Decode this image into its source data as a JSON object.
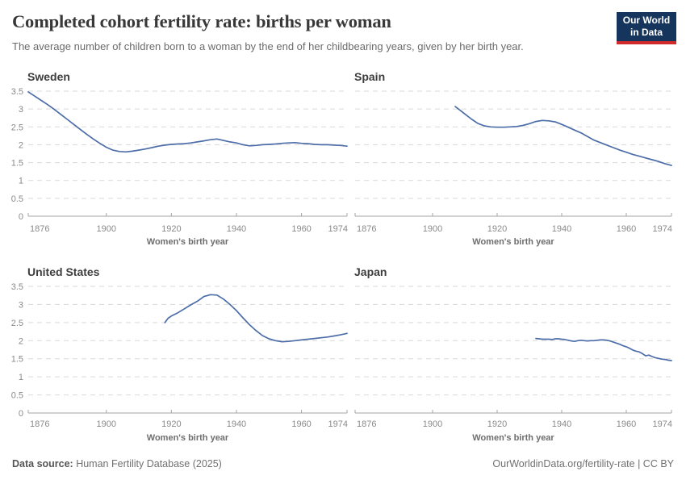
{
  "header": {
    "title": "Completed cohort fertility rate: births per woman",
    "subtitle": "The average number of children born to a woman by the end of her childbearing years, given by her birth year.",
    "logo": {
      "line1": "Our World",
      "line2": "in Data"
    }
  },
  "footer": {
    "source_label": "Data source:",
    "source_value": " Human Fertility Database (2025)",
    "credit": "OurWorldinData.org/fertility-rate | CC BY"
  },
  "colors": {
    "line": "#4c6da8",
    "grid": "#d9d9d9",
    "axis": "#a5a5a5",
    "tick_label": "#8a8a8a",
    "axis_title": "#6e6e6e",
    "facet_title": "#3d3d3d",
    "title": "#383838",
    "subtitle": "#6b6b6b",
    "logo_bg": "#16355c",
    "logo_red": "#d02a2a"
  },
  "chart_data": [
    {
      "type": "line",
      "title": "Sweden",
      "xlabel": "Women's birth year",
      "xlim": [
        1876,
        1974
      ],
      "ylim": [
        0,
        3.5
      ],
      "xticks": [
        1876,
        1900,
        1920,
        1940,
        1960,
        1974
      ],
      "yticks": [
        0,
        0.5,
        1,
        1.5,
        2,
        2.5,
        3,
        3.5
      ],
      "grid": "dashed-horizontal",
      "x": [
        1876,
        1878,
        1880,
        1882,
        1884,
        1886,
        1888,
        1890,
        1892,
        1894,
        1896,
        1898,
        1900,
        1902,
        1904,
        1906,
        1908,
        1910,
        1912,
        1914,
        1916,
        1918,
        1920,
        1922,
        1924,
        1926,
        1928,
        1930,
        1932,
        1934,
        1936,
        1938,
        1940,
        1942,
        1944,
        1946,
        1948,
        1950,
        1952,
        1954,
        1956,
        1958,
        1960,
        1962,
        1964,
        1966,
        1968,
        1970,
        1972,
        1974
      ],
      "values": [
        3.48,
        3.36,
        3.24,
        3.12,
        2.99,
        2.85,
        2.71,
        2.57,
        2.43,
        2.29,
        2.16,
        2.04,
        1.93,
        1.85,
        1.81,
        1.8,
        1.82,
        1.85,
        1.88,
        1.92,
        1.96,
        1.99,
        2.01,
        2.02,
        2.03,
        2.05,
        2.08,
        2.11,
        2.14,
        2.16,
        2.12,
        2.08,
        2.05,
        2.0,
        1.97,
        1.98,
        2.0,
        2.01,
        2.02,
        2.04,
        2.05,
        2.06,
        2.04,
        2.03,
        2.01,
        2.0,
        2.0,
        1.99,
        1.98,
        1.96
      ]
    },
    {
      "type": "line",
      "title": "Spain",
      "xlabel": "Women's birth year",
      "xlim": [
        1876,
        1974
      ],
      "ylim": [
        0,
        3.5
      ],
      "xticks": [
        1876,
        1900,
        1920,
        1940,
        1960,
        1974
      ],
      "yticks": [
        0,
        0.5,
        1,
        1.5,
        2,
        2.5,
        3,
        3.5
      ],
      "grid": "dashed-horizontal",
      "x": [
        1907,
        1908,
        1910,
        1912,
        1914,
        1916,
        1918,
        1920,
        1922,
        1924,
        1926,
        1928,
        1930,
        1932,
        1934,
        1936,
        1938,
        1940,
        1942,
        1944,
        1946,
        1948,
        1950,
        1952,
        1954,
        1956,
        1958,
        1960,
        1962,
        1964,
        1966,
        1968,
        1970,
        1972,
        1974
      ],
      "values": [
        3.07,
        3.0,
        2.86,
        2.72,
        2.6,
        2.53,
        2.5,
        2.49,
        2.49,
        2.5,
        2.51,
        2.54,
        2.59,
        2.65,
        2.68,
        2.67,
        2.64,
        2.57,
        2.49,
        2.41,
        2.33,
        2.23,
        2.13,
        2.06,
        1.99,
        1.92,
        1.85,
        1.79,
        1.73,
        1.68,
        1.63,
        1.58,
        1.53,
        1.47,
        1.42
      ]
    },
    {
      "type": "line",
      "title": "United States",
      "xlabel": "Women's birth year",
      "xlim": [
        1876,
        1974
      ],
      "ylim": [
        0,
        3.5
      ],
      "xticks": [
        1876,
        1900,
        1920,
        1940,
        1960,
        1974
      ],
      "yticks": [
        0,
        0.5,
        1,
        1.5,
        2,
        2.5,
        3,
        3.5
      ],
      "grid": "dashed-horizontal",
      "x": [
        1918,
        1919,
        1920,
        1922,
        1924,
        1926,
        1928,
        1930,
        1932,
        1934,
        1936,
        1938,
        1940,
        1942,
        1944,
        1946,
        1948,
        1950,
        1952,
        1954,
        1956,
        1958,
        1960,
        1962,
        1964,
        1966,
        1968,
        1970,
        1972,
        1974
      ],
      "values": [
        2.5,
        2.62,
        2.68,
        2.77,
        2.88,
        2.99,
        3.09,
        3.22,
        3.27,
        3.26,
        3.15,
        3.0,
        2.83,
        2.63,
        2.44,
        2.28,
        2.14,
        2.05,
        2.0,
        1.97,
        1.98,
        2.0,
        2.02,
        2.04,
        2.06,
        2.08,
        2.1,
        2.13,
        2.16,
        2.2
      ]
    },
    {
      "type": "line",
      "title": "Japan",
      "xlabel": "Women's birth year",
      "xlim": [
        1876,
        1974
      ],
      "ylim": [
        0,
        3.5
      ],
      "xticks": [
        1876,
        1900,
        1920,
        1940,
        1960,
        1974
      ],
      "yticks": [
        0,
        0.5,
        1,
        1.5,
        2,
        2.5,
        3,
        3.5
      ],
      "grid": "dashed-horizontal",
      "x": [
        1932,
        1933,
        1934,
        1935,
        1936,
        1937,
        1938,
        1939,
        1940,
        1941,
        1942,
        1943,
        1944,
        1945,
        1946,
        1947,
        1948,
        1949,
        1950,
        1951,
        1952,
        1953,
        1954,
        1955,
        1956,
        1957,
        1958,
        1959,
        1960,
        1961,
        1962,
        1963,
        1964,
        1965,
        1966,
        1967,
        1968,
        1969,
        1970,
        1971,
        1972,
        1973,
        1974
      ],
      "values": [
        2.06,
        2.05,
        2.04,
        2.04,
        2.04,
        2.03,
        2.05,
        2.05,
        2.04,
        2.03,
        2.01,
        1.99,
        1.98,
        2.0,
        2.01,
        2.0,
        1.99,
        2.0,
        2.0,
        2.01,
        2.02,
        2.02,
        2.01,
        1.99,
        1.96,
        1.93,
        1.9,
        1.86,
        1.83,
        1.79,
        1.74,
        1.71,
        1.69,
        1.64,
        1.58,
        1.6,
        1.56,
        1.53,
        1.51,
        1.49,
        1.48,
        1.46,
        1.45
      ]
    }
  ]
}
